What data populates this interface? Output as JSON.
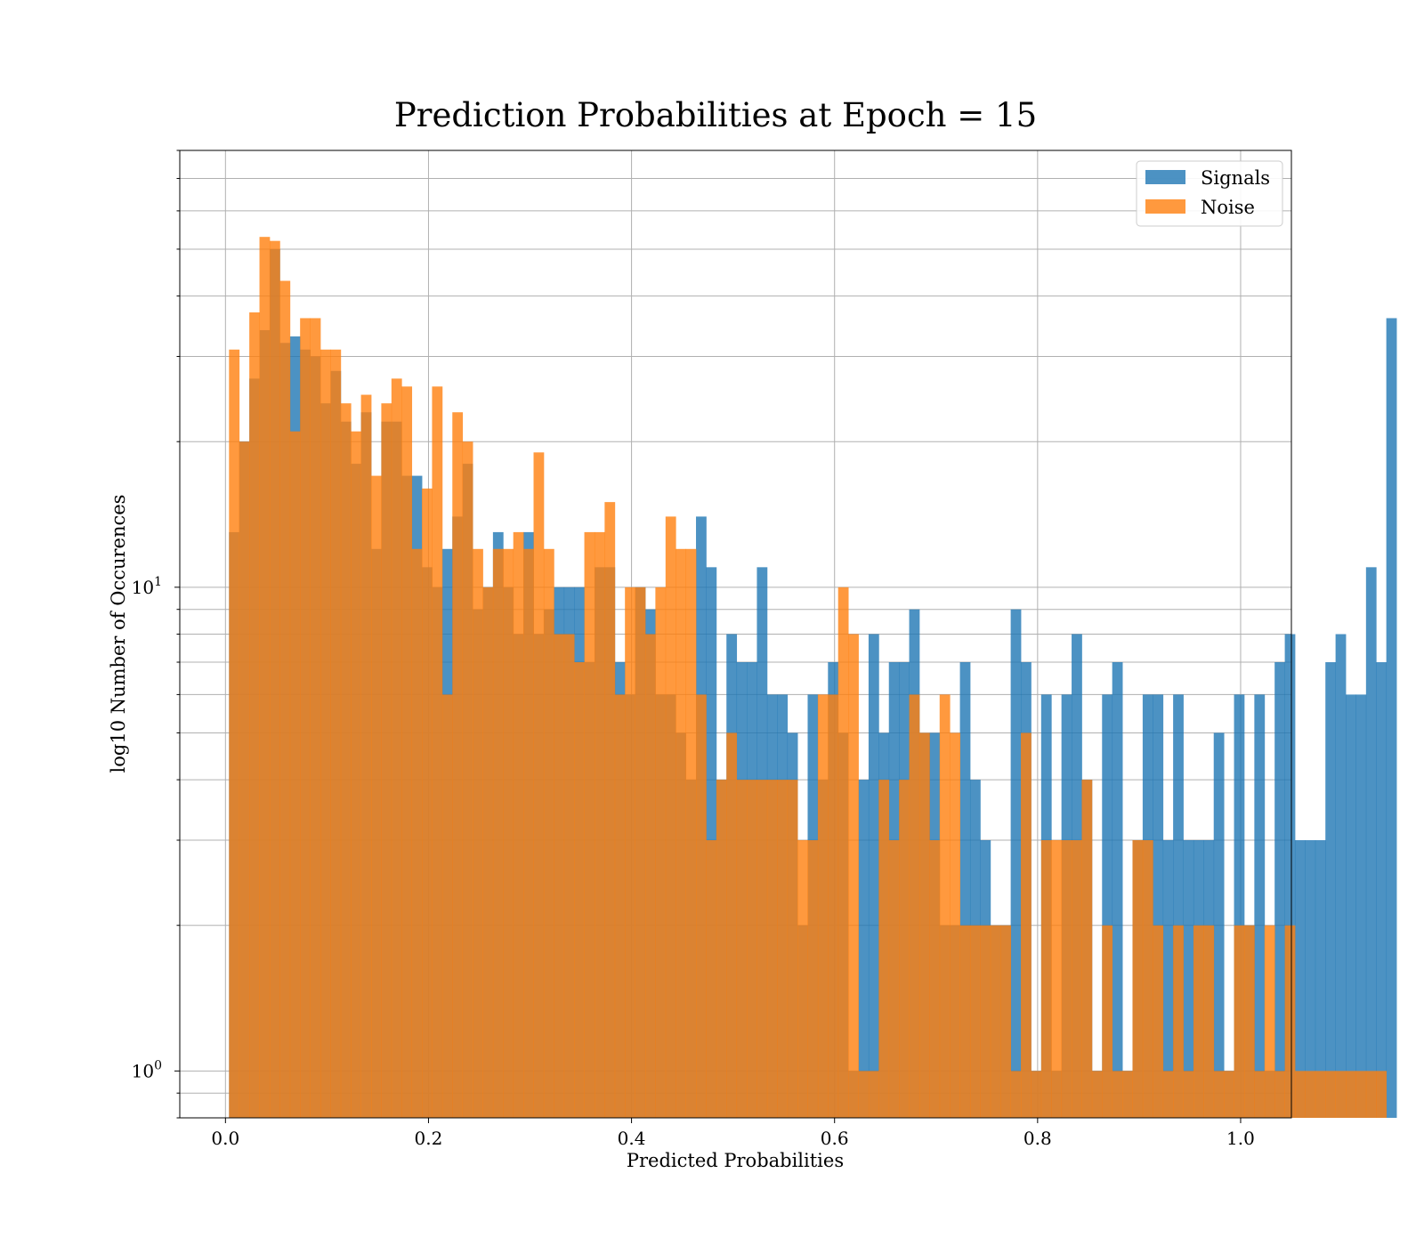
{
  "chart_data": {
    "type": "bar",
    "title": "Prediction Probabilities at Epoch = 15",
    "xlabel": "Predicted Probabilities",
    "ylabel": "log10 Number of Occurences",
    "xlim": [
      -0.045,
      1.05
    ],
    "ylim": [
      0.8,
      80
    ],
    "yscale": "log",
    "grid": true,
    "legend_position": "top-right",
    "bin_start": 0.0035,
    "bin_width": 0.01,
    "x_ticks": [
      "0.0",
      "0.2",
      "0.4",
      "0.6",
      "0.8",
      "1.0"
    ],
    "x_tick_values": [
      0,
      0.2,
      0.4,
      0.6,
      0.8,
      1.0
    ],
    "y_ticks": [
      {
        "value": 1,
        "base": "10",
        "exp": "0"
      },
      {
        "value": 10,
        "base": "10",
        "exp": "1"
      }
    ],
    "series": [
      {
        "name": "Signals",
        "color": "#1f77b4",
        "values": [
          13,
          20,
          27,
          34,
          50,
          32,
          33,
          31,
          30,
          24,
          28,
          22,
          18,
          23,
          12,
          22,
          22,
          17,
          17,
          11,
          10,
          12,
          14,
          18,
          9,
          10,
          13,
          10,
          8,
          13,
          8,
          9,
          10,
          10,
          10,
          7,
          11,
          11,
          7,
          6,
          10,
          9,
          6,
          6,
          5,
          4,
          14,
          11,
          4,
          8,
          7,
          7,
          11,
          6,
          6,
          5,
          2,
          6,
          4,
          7,
          5,
          1,
          4,
          8,
          5,
          7,
          7,
          9,
          5,
          5,
          2,
          2,
          7,
          4,
          3,
          2,
          2,
          9,
          7,
          1,
          6,
          1,
          6,
          8,
          4,
          1,
          6,
          7,
          1,
          3,
          6,
          6,
          3,
          6,
          3,
          3,
          3,
          5,
          1,
          6,
          2,
          6,
          1,
          7,
          8,
          3,
          3,
          3,
          7,
          8,
          6,
          6,
          11,
          7,
          36
        ]
      },
      {
        "name": "Noise",
        "color": "#ff7f0e",
        "values": [
          31,
          20,
          37,
          53,
          52,
          43,
          21,
          36,
          36,
          31,
          31,
          24,
          21,
          25,
          17,
          24,
          27,
          26,
          12,
          16,
          26,
          6,
          23,
          20,
          12,
          10,
          12,
          12,
          13,
          12,
          19,
          12,
          8,
          8,
          7,
          13,
          13,
          15,
          6,
          10,
          10,
          8,
          10,
          14,
          12,
          12,
          6,
          3,
          4,
          5,
          4,
          4,
          4,
          4,
          4,
          4,
          3,
          3,
          6,
          6,
          10,
          8,
          1,
          1,
          4,
          3,
          4,
          6,
          5,
          3,
          6,
          5,
          2,
          2,
          2,
          2,
          2,
          1,
          5,
          1,
          3,
          3,
          3,
          3,
          4,
          1,
          2,
          1,
          1,
          3,
          3,
          2,
          1,
          2,
          1,
          2,
          2,
          1,
          1,
          2,
          2,
          1,
          2,
          1,
          2,
          1,
          1,
          1,
          1,
          1,
          1,
          1,
          1,
          1,
          0
        ]
      }
    ]
  }
}
